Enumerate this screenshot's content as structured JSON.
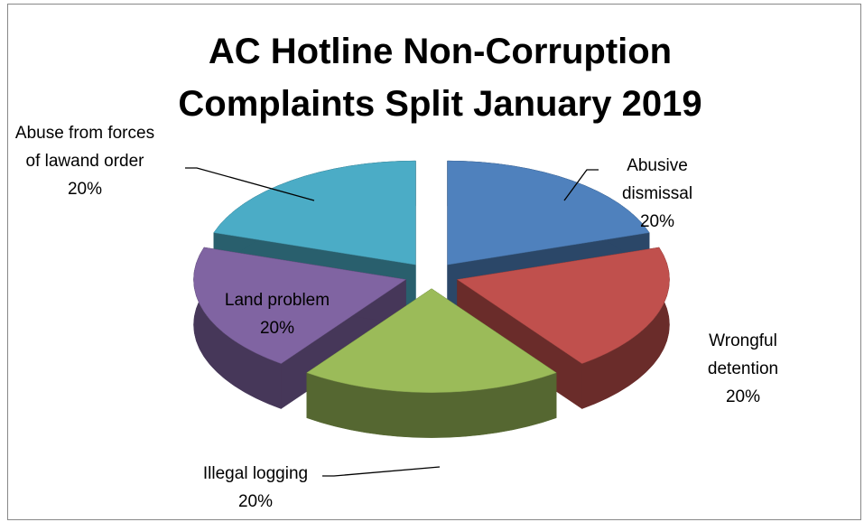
{
  "chart_data": {
    "type": "pie3d",
    "title": "AC Hotline Non-Corruption Complaints Split January 2019",
    "categories": [
      "Abusive dismissal",
      "Wrongful detention",
      "Illegal logging",
      "Land problem",
      "Abuse from forces of lawand order"
    ],
    "values": [
      20,
      20,
      20,
      20,
      20
    ],
    "value_labels": [
      "20%",
      "20%",
      "20%",
      "20%",
      "20%"
    ],
    "colors": [
      "#4f81bd",
      "#c0504d",
      "#9bbb59",
      "#8064a2",
      "#4bacc6"
    ],
    "exploded": true
  }
}
